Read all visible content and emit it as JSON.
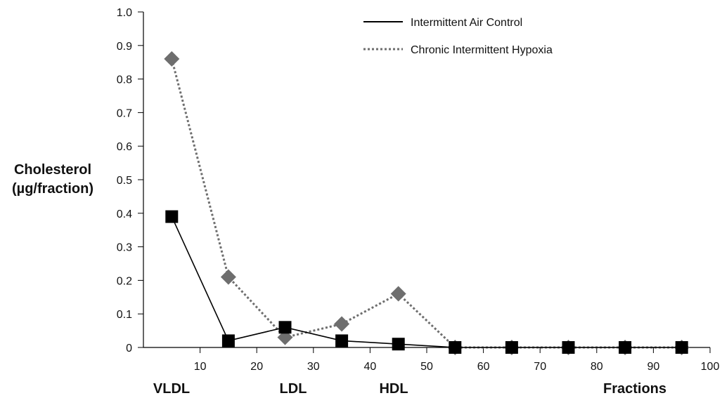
{
  "chart_data": {
    "type": "line",
    "ylabel_lines": [
      "Cholesterol",
      "(µg/fraction)"
    ],
    "xlabel": "Fractions",
    "region_labels": [
      "VLDL",
      "LDL",
      "HDL"
    ],
    "xlim": [
      0,
      100
    ],
    "ylim": [
      0,
      1.0
    ],
    "x_ticks": [
      10,
      20,
      30,
      40,
      50,
      60,
      70,
      80,
      90,
      100
    ],
    "y_ticks": [
      "0",
      "0.1",
      "0.2",
      "0.3",
      "0.4",
      "0.5",
      "0.6",
      "0.7",
      "0.8",
      "0.9",
      "1.0"
    ],
    "grid": false,
    "legend_position": "top-right",
    "x": [
      5,
      15,
      25,
      35,
      45,
      55,
      65,
      75,
      85,
      95
    ],
    "series": [
      {
        "name": "Intermittent Air Control",
        "style": "solid",
        "marker": "square",
        "color": "#000000",
        "values": [
          0.39,
          0.02,
          0.06,
          0.02,
          0.01,
          0.0,
          0.0,
          0.0,
          0.0,
          0.0
        ]
      },
      {
        "name": "Chronic Intermittent Hypoxia",
        "style": "dotted",
        "marker": "diamond",
        "color": "#6e6e6e",
        "values": [
          0.86,
          0.21,
          0.03,
          0.07,
          0.16,
          0.0,
          0.0,
          0.0,
          0.0,
          0.0
        ]
      }
    ]
  }
}
